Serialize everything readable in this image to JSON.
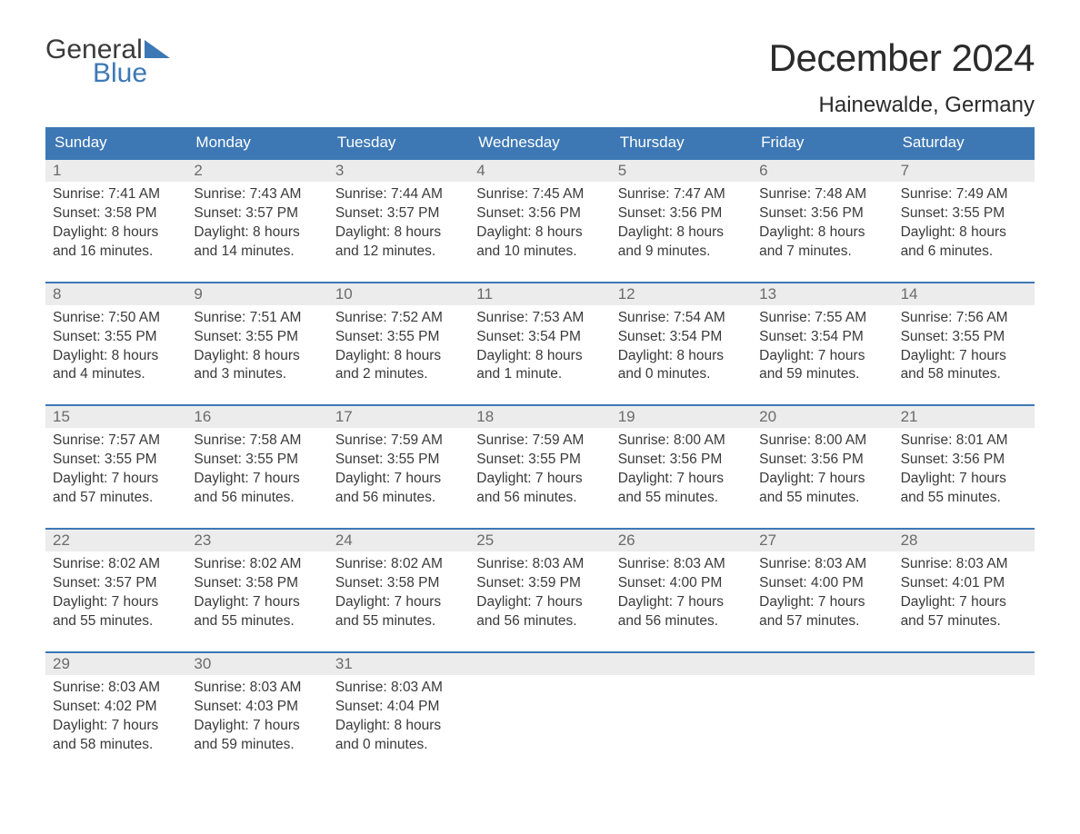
{
  "logo": {
    "top": "General",
    "bottom": "Blue",
    "triangle_fill": "#3d78b5"
  },
  "title": "December 2024",
  "location": "Hainewalde, Germany",
  "colors": {
    "header_bg": "#3d78b5",
    "header_text": "#ffffff",
    "daynum_bg": "#ececec",
    "daynum_text": "#6b6b6b",
    "body_text": "#3a3a3a",
    "week_border": "#3d78b5",
    "page_bg": "#ffffff"
  },
  "fonts": {
    "title_pt": 42,
    "location_pt": 24,
    "dow_pt": 17,
    "daynum_pt": 17,
    "body_pt": 15.5,
    "logo_pt": 30
  },
  "days_of_week": [
    "Sunday",
    "Monday",
    "Tuesday",
    "Wednesday",
    "Thursday",
    "Friday",
    "Saturday"
  ],
  "labels": {
    "sunrise": "Sunrise:",
    "sunset": "Sunset:",
    "daylight": "Daylight:"
  },
  "weeks": [
    [
      {
        "n": "1",
        "sr": "7:41 AM",
        "ss": "3:58 PM",
        "dl1": "8 hours",
        "dl2": "and 16 minutes."
      },
      {
        "n": "2",
        "sr": "7:43 AM",
        "ss": "3:57 PM",
        "dl1": "8 hours",
        "dl2": "and 14 minutes."
      },
      {
        "n": "3",
        "sr": "7:44 AM",
        "ss": "3:57 PM",
        "dl1": "8 hours",
        "dl2": "and 12 minutes."
      },
      {
        "n": "4",
        "sr": "7:45 AM",
        "ss": "3:56 PM",
        "dl1": "8 hours",
        "dl2": "and 10 minutes."
      },
      {
        "n": "5",
        "sr": "7:47 AM",
        "ss": "3:56 PM",
        "dl1": "8 hours",
        "dl2": "and 9 minutes."
      },
      {
        "n": "6",
        "sr": "7:48 AM",
        "ss": "3:56 PM",
        "dl1": "8 hours",
        "dl2": "and 7 minutes."
      },
      {
        "n": "7",
        "sr": "7:49 AM",
        "ss": "3:55 PM",
        "dl1": "8 hours",
        "dl2": "and 6 minutes."
      }
    ],
    [
      {
        "n": "8",
        "sr": "7:50 AM",
        "ss": "3:55 PM",
        "dl1": "8 hours",
        "dl2": "and 4 minutes."
      },
      {
        "n": "9",
        "sr": "7:51 AM",
        "ss": "3:55 PM",
        "dl1": "8 hours",
        "dl2": "and 3 minutes."
      },
      {
        "n": "10",
        "sr": "7:52 AM",
        "ss": "3:55 PM",
        "dl1": "8 hours",
        "dl2": "and 2 minutes."
      },
      {
        "n": "11",
        "sr": "7:53 AM",
        "ss": "3:54 PM",
        "dl1": "8 hours",
        "dl2": "and 1 minute."
      },
      {
        "n": "12",
        "sr": "7:54 AM",
        "ss": "3:54 PM",
        "dl1": "8 hours",
        "dl2": "and 0 minutes."
      },
      {
        "n": "13",
        "sr": "7:55 AM",
        "ss": "3:54 PM",
        "dl1": "7 hours",
        "dl2": "and 59 minutes."
      },
      {
        "n": "14",
        "sr": "7:56 AM",
        "ss": "3:55 PM",
        "dl1": "7 hours",
        "dl2": "and 58 minutes."
      }
    ],
    [
      {
        "n": "15",
        "sr": "7:57 AM",
        "ss": "3:55 PM",
        "dl1": "7 hours",
        "dl2": "and 57 minutes."
      },
      {
        "n": "16",
        "sr": "7:58 AM",
        "ss": "3:55 PM",
        "dl1": "7 hours",
        "dl2": "and 56 minutes."
      },
      {
        "n": "17",
        "sr": "7:59 AM",
        "ss": "3:55 PM",
        "dl1": "7 hours",
        "dl2": "and 56 minutes."
      },
      {
        "n": "18",
        "sr": "7:59 AM",
        "ss": "3:55 PM",
        "dl1": "7 hours",
        "dl2": "and 56 minutes."
      },
      {
        "n": "19",
        "sr": "8:00 AM",
        "ss": "3:56 PM",
        "dl1": "7 hours",
        "dl2": "and 55 minutes."
      },
      {
        "n": "20",
        "sr": "8:00 AM",
        "ss": "3:56 PM",
        "dl1": "7 hours",
        "dl2": "and 55 minutes."
      },
      {
        "n": "21",
        "sr": "8:01 AM",
        "ss": "3:56 PM",
        "dl1": "7 hours",
        "dl2": "and 55 minutes."
      }
    ],
    [
      {
        "n": "22",
        "sr": "8:02 AM",
        "ss": "3:57 PM",
        "dl1": "7 hours",
        "dl2": "and 55 minutes."
      },
      {
        "n": "23",
        "sr": "8:02 AM",
        "ss": "3:58 PM",
        "dl1": "7 hours",
        "dl2": "and 55 minutes."
      },
      {
        "n": "24",
        "sr": "8:02 AM",
        "ss": "3:58 PM",
        "dl1": "7 hours",
        "dl2": "and 55 minutes."
      },
      {
        "n": "25",
        "sr": "8:03 AM",
        "ss": "3:59 PM",
        "dl1": "7 hours",
        "dl2": "and 56 minutes."
      },
      {
        "n": "26",
        "sr": "8:03 AM",
        "ss": "4:00 PM",
        "dl1": "7 hours",
        "dl2": "and 56 minutes."
      },
      {
        "n": "27",
        "sr": "8:03 AM",
        "ss": "4:00 PM",
        "dl1": "7 hours",
        "dl2": "and 57 minutes."
      },
      {
        "n": "28",
        "sr": "8:03 AM",
        "ss": "4:01 PM",
        "dl1": "7 hours",
        "dl2": "and 57 minutes."
      }
    ],
    [
      {
        "n": "29",
        "sr": "8:03 AM",
        "ss": "4:02 PM",
        "dl1": "7 hours",
        "dl2": "and 58 minutes."
      },
      {
        "n": "30",
        "sr": "8:03 AM",
        "ss": "4:03 PM",
        "dl1": "7 hours",
        "dl2": "and 59 minutes."
      },
      {
        "n": "31",
        "sr": "8:03 AM",
        "ss": "4:04 PM",
        "dl1": "8 hours",
        "dl2": "and 0 minutes."
      },
      null,
      null,
      null,
      null
    ]
  ]
}
